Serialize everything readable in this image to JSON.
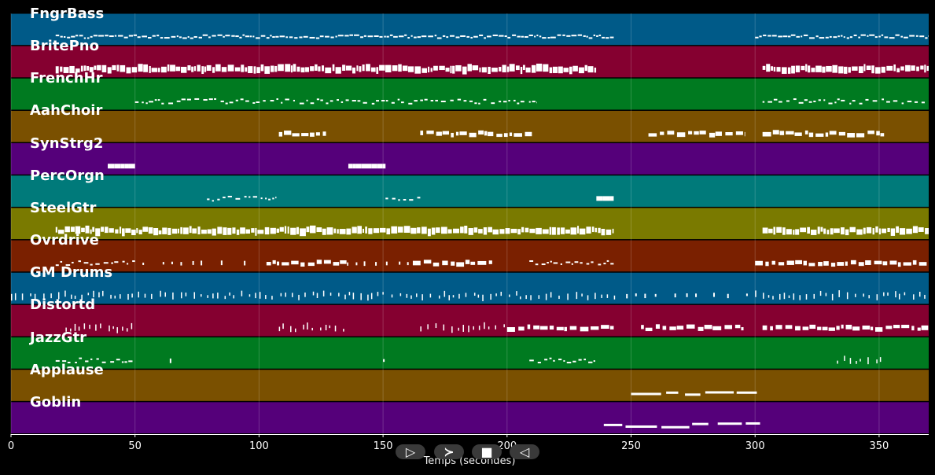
{
  "chart_data": {
    "type": "piano-roll",
    "xlabel": "Temps (secondes)",
    "xlim": [
      0,
      370
    ],
    "xticks": [
      0,
      50,
      100,
      150,
      200,
      250,
      300,
      350
    ],
    "grid": true,
    "tracks": [
      {
        "name": "FngrBass",
        "color": "#005a88",
        "segments": [
          [
            18,
            243,
            "dense"
          ],
          [
            300,
            370,
            "dense"
          ]
        ]
      },
      {
        "name": "BritePno",
        "color": "#850030",
        "segments": [
          [
            18,
            236,
            "thick"
          ],
          [
            303,
            370,
            "thick"
          ]
        ]
      },
      {
        "name": "FrenchHr",
        "color": "#007a20",
        "segments": [
          [
            50,
            212,
            "sparse"
          ],
          [
            303,
            370,
            "sparse"
          ]
        ]
      },
      {
        "name": "AahChoir",
        "color": "#7a5000",
        "segments": [
          [
            108,
            127,
            "blocks"
          ],
          [
            165,
            210,
            "blocks"
          ],
          [
            257,
            296,
            "blocks"
          ],
          [
            303,
            352,
            "blocks"
          ]
        ]
      },
      {
        "name": "SynStrg2",
        "color": "#55007a",
        "segments": [
          [
            39,
            50,
            "bar"
          ],
          [
            136,
            151,
            "bar"
          ]
        ]
      },
      {
        "name": "PercOrgn",
        "color": "#007a7a",
        "segments": [
          [
            79,
            107,
            "sparse"
          ],
          [
            151,
            165,
            "sparse"
          ],
          [
            236,
            243,
            "bar"
          ]
        ]
      },
      {
        "name": "SteelGtr",
        "color": "#7a7a00",
        "segments": [
          [
            18,
            243,
            "thick"
          ],
          [
            303,
            370,
            "thick"
          ]
        ]
      },
      {
        "name": "Ovrdrive",
        "color": "#7a2000",
        "segments": [
          [
            18,
            50,
            "sparse"
          ],
          [
            53,
            100,
            "dots"
          ],
          [
            103,
            136,
            "blocks"
          ],
          [
            139,
            162,
            "dots"
          ],
          [
            162,
            194,
            "blocks"
          ],
          [
            209,
            243,
            "sparse"
          ],
          [
            300,
            370,
            "blocks"
          ]
        ]
      },
      {
        "name": "GM Drums",
        "color": "#005a88",
        "segments": [
          [
            0,
            245,
            "ticks"
          ],
          [
            248,
            298,
            "dots"
          ],
          [
            300,
            370,
            "ticks"
          ]
        ]
      },
      {
        "name": "Distortd",
        "color": "#850030",
        "segments": [
          [
            22,
            50,
            "ticks"
          ],
          [
            108,
            136,
            "ticks"
          ],
          [
            165,
            200,
            "ticks"
          ],
          [
            200,
            243,
            "blocks"
          ],
          [
            254,
            296,
            "blocks"
          ],
          [
            303,
            370,
            "blocks"
          ]
        ]
      },
      {
        "name": "JazzGtr",
        "color": "#007a20",
        "segments": [
          [
            18,
            50,
            "sparse"
          ],
          [
            64,
            66,
            "dots"
          ],
          [
            150,
            152,
            "dots"
          ],
          [
            209,
            236,
            "sparse"
          ],
          [
            333,
            352,
            "ticks"
          ]
        ]
      },
      {
        "name": "Applause",
        "color": "#7a5000",
        "segments": [
          [
            250,
            302,
            "bars"
          ]
        ]
      },
      {
        "name": "Goblin",
        "color": "#55007a",
        "segments": [
          [
            239,
            302,
            "bars"
          ]
        ]
      }
    ]
  },
  "controls": {
    "play": "▷",
    "next": "≻",
    "stop": "■",
    "prev": "◁"
  }
}
